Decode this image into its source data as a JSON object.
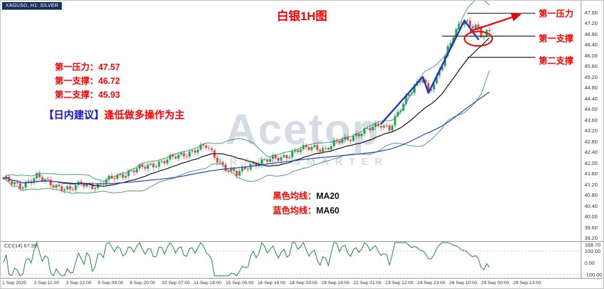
{
  "window": {
    "symbol_label": "XAGUSD, H1: SILVER"
  },
  "title": "白银1H图",
  "watermark": {
    "brand": "Acetop",
    "tagline": "TRADE SMARTER"
  },
  "annotations": {
    "left_levels": [
      {
        "label": "第一压力：",
        "value": "47.57"
      },
      {
        "label": "第一支撑：",
        "value": "46.72"
      },
      {
        "label": "第二支撑：",
        "value": "45.93"
      }
    ],
    "advice_prefix": "【日内建议】",
    "advice_text": "逢低做多操作为主",
    "right_labels": [
      "第一压力",
      "第一支撑",
      "第二支撑"
    ],
    "ma_notes": [
      {
        "label": "黑色均线：",
        "value": "MA20"
      },
      {
        "label": "蓝色均线：",
        "value": "MA60"
      }
    ]
  },
  "chart_data": {
    "type": "candlestick",
    "symbol": "XAGUSD",
    "timeframe": "H1",
    "title": "白银1H图",
    "levels": {
      "resistance1": 47.57,
      "support1": 46.72,
      "support2": 45.93
    },
    "y_axis": {
      "min": 39.2,
      "max": 47.6,
      "tick_step": 0.4,
      "ticks": [
        "47.60",
        "47.20",
        "46.80",
        "46.40",
        "46.00",
        "45.60",
        "45.20",
        "44.80",
        "44.40",
        "44.00",
        "43.60",
        "43.20",
        "42.80",
        "42.40",
        "42.00",
        "41.60",
        "41.20",
        "40.80",
        "40.40",
        "40.00",
        "39.60",
        "39.20"
      ]
    },
    "x_axis_ticks": [
      "1 Sep 2025",
      "2 Sep 11:00",
      "3 Sep 22:00",
      "5 Sep 09:00",
      "8 Sep 20:00",
      "10 Sep 07:00",
      "11 Sep 18:00",
      "15 Sep 05:00",
      "16 Sep 16:00",
      "18 Sep 03:00",
      "19 Sep 14:00",
      "22 Sep 01:00",
      "23 Sep 12:00",
      "24 Sep 23:00",
      "26 Sep 10:00",
      "29 Sep 00:00",
      "29 Sep 13:00"
    ],
    "bar_count": 176,
    "price_path_anchors": [
      [
        0,
        41.35
      ],
      [
        6,
        41.15
      ],
      [
        12,
        41.45
      ],
      [
        18,
        41.2
      ],
      [
        24,
        40.95
      ],
      [
        28,
        41.25
      ],
      [
        34,
        41.1
      ],
      [
        40,
        41.5
      ],
      [
        46,
        41.65
      ],
      [
        52,
        41.9
      ],
      [
        58,
        42.05
      ],
      [
        64,
        42.3
      ],
      [
        70,
        42.5
      ],
      [
        73,
        42.6
      ],
      [
        76,
        42.25
      ],
      [
        80,
        41.8
      ],
      [
        84,
        41.55
      ],
      [
        89,
        41.95
      ],
      [
        94,
        42.05
      ],
      [
        100,
        42.2
      ],
      [
        106,
        42.45
      ],
      [
        112,
        42.6
      ],
      [
        116,
        42.5
      ],
      [
        121,
        42.8
      ],
      [
        126,
        43.0
      ],
      [
        131,
        43.2
      ],
      [
        136,
        43.45
      ],
      [
        139,
        43.3
      ],
      [
        142,
        43.8
      ],
      [
        145,
        44.35
      ],
      [
        148,
        44.9
      ],
      [
        151,
        45.2
      ],
      [
        153,
        44.6
      ],
      [
        156,
        45.1
      ],
      [
        158,
        45.7
      ],
      [
        160,
        46.3
      ],
      [
        162,
        46.8
      ],
      [
        164,
        47.1
      ],
      [
        166,
        47.3
      ],
      [
        168,
        47.0
      ],
      [
        170,
        47.15
      ],
      [
        172,
        46.75
      ],
      [
        174,
        46.95
      ],
      [
        175,
        46.85
      ]
    ],
    "indicators": {
      "ma20": {
        "label": "MA20",
        "color": "#111111"
      },
      "ma60": {
        "label": "MA60",
        "color": "#2244cc"
      },
      "bollinger": {
        "period": 20,
        "deviation": 2,
        "color": "#2e8b57"
      }
    },
    "cci": {
      "label": "CCI(14) 67.39",
      "period": 14,
      "last_value": 67.39,
      "axis_ticks": [
        "168.70",
        "100.00",
        "0.00",
        "-100.00"
      ],
      "levels": [
        100,
        -100
      ]
    },
    "drawings": {
      "trend_zigzag": {
        "color": "#2233cc",
        "points_bar_price": [
          [
            136,
            43.45
          ],
          [
            151,
            45.2
          ],
          [
            153,
            44.6
          ],
          [
            166,
            47.3
          ],
          [
            171,
            46.6
          ]
        ]
      },
      "arrow": {
        "color": "#ee0000",
        "from_bar_price": [
          168,
          46.9
        ],
        "to_bar_price": [
          186,
          47.52
        ]
      },
      "ellipse": {
        "color": "#ee0000",
        "center_bar_price": [
          171,
          46.62
        ],
        "rx_bars": 5,
        "ry_price": 0.27
      }
    },
    "colors": {
      "candle_up": "#1f9d55",
      "candle_down": "#d9433b",
      "level_line": "#222222",
      "cci_line": "#1a8a3a"
    }
  }
}
